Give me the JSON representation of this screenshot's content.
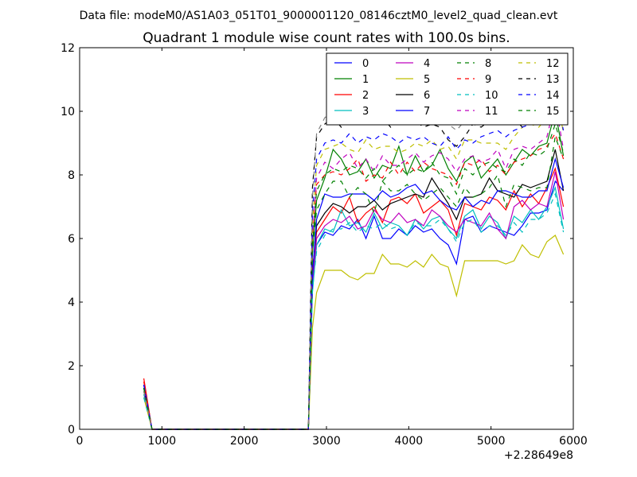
{
  "header": {
    "data_file": "Data file: modeM0/AS1A03_051T01_9000001120_08146cztM0_level2_quad_clean.evt"
  },
  "chart_data": {
    "type": "line",
    "title": "Quadrant 1 module wise count rates with 100.0s bins.",
    "xlabel": "",
    "ylabel": "",
    "x_offset_label": "+2.28649e8",
    "xlim": [
      0,
      6000
    ],
    "ylim": [
      0,
      12
    ],
    "xticks": [
      0,
      1000,
      2000,
      3000,
      4000,
      5000,
      6000
    ],
    "yticks": [
      0,
      2,
      4,
      6,
      8,
      10,
      12
    ],
    "grid": false,
    "legend_position": "top-right",
    "legend_columns": 4,
    "x": [
      780,
      880,
      980,
      1080,
      1180,
      1280,
      1380,
      1480,
      1580,
      1680,
      1780,
      1880,
      1980,
      2080,
      2180,
      2280,
      2380,
      2480,
      2580,
      2680,
      2780,
      2830,
      2880,
      2980,
      3080,
      3180,
      3280,
      3380,
      3480,
      3580,
      3680,
      3780,
      3880,
      3980,
      4080,
      4180,
      4280,
      4380,
      4480,
      4580,
      4680,
      4780,
      4880,
      4980,
      5080,
      5180,
      5280,
      5380,
      5480,
      5580,
      5680,
      5780,
      5880
    ],
    "series": [
      {
        "name": "0",
        "color": "#0000ff",
        "dash": "solid",
        "values": [
          1.3,
          0,
          0,
          0,
          0,
          0,
          0,
          0,
          0,
          0,
          0,
          0,
          0,
          0,
          0,
          0,
          0,
          0,
          0,
          0,
          0,
          4.5,
          5.8,
          6.2,
          6.1,
          6.4,
          6.3,
          6.6,
          6.0,
          6.7,
          6.0,
          6.0,
          6.3,
          6.1,
          6.4,
          6.2,
          6.3,
          6.0,
          5.8,
          5.2,
          6.6,
          6.7,
          6.2,
          6.4,
          6.3,
          6.2,
          6.1,
          6.4,
          6.8,
          6.8,
          6.9,
          7.8,
          7.5
        ]
      },
      {
        "name": "1",
        "color": "#008000",
        "dash": "solid",
        "values": [
          1.2,
          0,
          0,
          0,
          0,
          0,
          0,
          0,
          0,
          0,
          0,
          0,
          0,
          0,
          0,
          0,
          0,
          0,
          0,
          0,
          0,
          5.5,
          7.2,
          7.9,
          8.8,
          8.5,
          8.0,
          8.1,
          8.5,
          7.9,
          8.3,
          8.2,
          8.9,
          8.0,
          8.6,
          8.1,
          8.3,
          8.8,
          8.2,
          7.8,
          8.4,
          8.6,
          7.9,
          8.2,
          8.5,
          8.0,
          8.4,
          8.8,
          8.6,
          8.9,
          9.0,
          10.0,
          8.6
        ]
      },
      {
        "name": "2",
        "color": "#ff0000",
        "dash": "solid",
        "values": [
          1.6,
          0,
          0,
          0,
          0,
          0,
          0,
          0,
          0,
          0,
          0,
          0,
          0,
          0,
          0,
          0,
          0,
          0,
          0,
          0,
          0,
          5.0,
          6.2,
          6.6,
          7.0,
          6.8,
          7.3,
          6.5,
          6.8,
          7.0,
          6.5,
          7.2,
          7.3,
          7.1,
          7.4,
          6.8,
          7.0,
          7.2,
          6.9,
          6.1,
          7.1,
          7.0,
          6.9,
          7.3,
          7.2,
          6.9,
          7.5,
          7.0,
          7.4,
          7.1,
          7.6,
          8.2,
          7.0
        ]
      },
      {
        "name": "3",
        "color": "#00bfbf",
        "dash": "solid",
        "values": [
          1.1,
          0,
          0,
          0,
          0,
          0,
          0,
          0,
          0,
          0,
          0,
          0,
          0,
          0,
          0,
          0,
          0,
          0,
          0,
          0,
          0,
          4.3,
          5.8,
          6.3,
          6.2,
          6.9,
          6.4,
          6.5,
          6.2,
          6.8,
          6.3,
          6.5,
          6.4,
          6.1,
          6.6,
          6.3,
          6.6,
          6.7,
          6.3,
          6.0,
          6.7,
          6.9,
          6.3,
          6.7,
          6.5,
          6.0,
          6.7,
          6.5,
          6.9,
          6.6,
          7.0,
          7.6,
          6.3
        ]
      },
      {
        "name": "4",
        "color": "#bf00bf",
        "dash": "solid",
        "values": [
          1.2,
          0,
          0,
          0,
          0,
          0,
          0,
          0,
          0,
          0,
          0,
          0,
          0,
          0,
          0,
          0,
          0,
          0,
          0,
          0,
          0,
          4.6,
          6.0,
          6.4,
          6.6,
          6.5,
          6.7,
          6.3,
          6.4,
          6.9,
          6.6,
          6.5,
          6.8,
          6.5,
          6.6,
          6.4,
          6.9,
          6.7,
          6.4,
          6.2,
          6.6,
          6.5,
          6.4,
          6.8,
          6.3,
          6.0,
          7.0,
          7.2,
          6.9,
          7.1,
          7.0,
          8.1,
          6.6
        ]
      },
      {
        "name": "5",
        "color": "#bfbf00",
        "dash": "solid",
        "values": [
          1.0,
          0,
          0,
          0,
          0,
          0,
          0,
          0,
          0,
          0,
          0,
          0,
          0,
          0,
          0,
          0,
          0,
          0,
          0,
          0,
          0,
          3.2,
          4.3,
          5.0,
          5.0,
          5.0,
          4.8,
          4.7,
          4.9,
          4.9,
          5.5,
          5.2,
          5.2,
          5.1,
          5.3,
          5.1,
          5.5,
          5.2,
          5.1,
          4.2,
          5.3,
          5.3,
          5.3,
          5.3,
          5.3,
          5.2,
          5.3,
          5.8,
          5.5,
          5.4,
          5.9,
          6.1,
          5.5
        ]
      },
      {
        "name": "6",
        "color": "#000000",
        "dash": "solid",
        "values": [
          1.3,
          0,
          0,
          0,
          0,
          0,
          0,
          0,
          0,
          0,
          0,
          0,
          0,
          0,
          0,
          0,
          0,
          0,
          0,
          0,
          0,
          4.9,
          6.4,
          6.8,
          7.1,
          7.0,
          6.8,
          7.0,
          7.0,
          7.2,
          6.9,
          7.1,
          7.2,
          7.3,
          7.4,
          7.3,
          7.9,
          7.5,
          7.1,
          6.6,
          7.3,
          7.3,
          7.4,
          7.9,
          7.5,
          7.4,
          7.3,
          7.7,
          7.6,
          7.7,
          7.8,
          8.8,
          7.5
        ]
      },
      {
        "name": "7",
        "color": "#0000ff",
        "dash": "solid",
        "values": [
          1.4,
          0,
          0,
          0,
          0,
          0,
          0,
          0,
          0,
          0,
          0,
          0,
          0,
          0,
          0,
          0,
          0,
          0,
          0,
          0,
          0,
          4.8,
          6.6,
          7.4,
          7.3,
          7.3,
          7.4,
          7.4,
          7.4,
          7.2,
          7.5,
          7.3,
          7.4,
          7.6,
          7.7,
          7.4,
          7.5,
          7.2,
          7.0,
          6.9,
          7.3,
          7.0,
          7.2,
          7.1,
          7.5,
          7.5,
          7.4,
          7.3,
          7.3,
          7.5,
          7.5,
          8.5,
          7.6
        ]
      },
      {
        "name": "8",
        "color": "#008000",
        "dash": "dashed",
        "values": [
          1.3,
          0,
          0,
          0,
          0,
          0,
          0,
          0,
          0,
          0,
          0,
          0,
          0,
          0,
          0,
          0,
          0,
          0,
          0,
          0,
          0,
          5.5,
          6.9,
          7.4,
          7.8,
          7.8,
          7.3,
          7.6,
          7.4,
          6.8,
          7.8,
          7.5,
          7.5,
          7.7,
          7.4,
          7.2,
          7.4,
          7.6,
          7.3,
          7.0,
          7.6,
          7.3,
          7.4,
          7.6,
          8.0,
          7.0,
          7.7,
          7.6,
          7.5,
          7.6,
          7.6,
          9.2,
          8.5
        ]
      },
      {
        "name": "9",
        "color": "#ff0000",
        "dash": "dashed",
        "values": [
          1.5,
          0,
          0,
          0,
          0,
          0,
          0,
          0,
          0,
          0,
          0,
          0,
          0,
          0,
          0,
          0,
          0,
          0,
          0,
          0,
          0,
          6.0,
          7.7,
          8.0,
          8.1,
          8.0,
          8.2,
          8.5,
          7.8,
          8.0,
          7.9,
          8.4,
          8.0,
          8.4,
          8.1,
          8.4,
          8.2,
          8.1,
          8.0,
          7.7,
          8.4,
          8.3,
          8.5,
          8.1,
          8.3,
          8.0,
          8.4,
          8.5,
          8.6,
          8.8,
          8.9,
          9.3,
          8.5
        ]
      },
      {
        "name": "10",
        "color": "#00bfbf",
        "dash": "dashed",
        "values": [
          1.0,
          0,
          0,
          0,
          0,
          0,
          0,
          0,
          0,
          0,
          0,
          0,
          0,
          0,
          0,
          0,
          0,
          0,
          0,
          0,
          0,
          4.4,
          5.6,
          6.1,
          6.3,
          6.3,
          6.5,
          6.2,
          6.4,
          6.3,
          6.5,
          6.3,
          6.4,
          6.1,
          6.5,
          6.4,
          6.4,
          6.6,
          6.3,
          5.9,
          6.5,
          6.6,
          6.2,
          6.4,
          6.4,
          6.1,
          6.5,
          6.2,
          6.6,
          6.6,
          6.8,
          7.4,
          6.2
        ]
      },
      {
        "name": "11",
        "color": "#bf00bf",
        "dash": "dashed",
        "values": [
          1.4,
          0,
          0,
          0,
          0,
          0,
          0,
          0,
          0,
          0,
          0,
          0,
          0,
          0,
          0,
          0,
          0,
          0,
          0,
          0,
          0,
          6.0,
          7.9,
          8.4,
          8.2,
          8.5,
          8.7,
          8.2,
          8.5,
          8.1,
          8.6,
          8.3,
          8.3,
          8.5,
          8.7,
          8.4,
          8.6,
          8.7,
          8.5,
          8.1,
          8.5,
          8.6,
          8.4,
          8.5,
          8.8,
          8.2,
          8.8,
          8.9,
          8.8,
          9.0,
          9.2,
          10.3,
          8.8
        ]
      },
      {
        "name": "12",
        "color": "#bfbf00",
        "dash": "dashed",
        "values": [
          1.2,
          0,
          0,
          0,
          0,
          0,
          0,
          0,
          0,
          0,
          0,
          0,
          0,
          0,
          0,
          0,
          0,
          0,
          0,
          0,
          0,
          6.5,
          8.3,
          8.8,
          8.9,
          9.0,
          8.8,
          8.7,
          9.1,
          8.8,
          8.9,
          8.9,
          8.7,
          8.8,
          9.0,
          8.9,
          9.1,
          8.8,
          8.9,
          8.5,
          9.1,
          9.1,
          9.0,
          9.0,
          9.0,
          8.8,
          9.2,
          9.5,
          9.6,
          9.5,
          9.8,
          10.8,
          9.3
        ]
      },
      {
        "name": "13",
        "color": "#000000",
        "dash": "dashed",
        "values": [
          1.3,
          0,
          0,
          0,
          0,
          0,
          0,
          0,
          0,
          0,
          0,
          0,
          0,
          0,
          0,
          0,
          0,
          0,
          0,
          0,
          0,
          7.6,
          9.2,
          9.6,
          9.8,
          9.5,
          9.9,
          9.7,
          10.0,
          9.6,
          9.8,
          9.5,
          9.8,
          10.1,
          9.7,
          9.5,
          9.6,
          9.5,
          9.1,
          8.9,
          9.2,
          9.6,
          9.5,
          9.7,
          9.6,
          9.6,
          9.8,
          9.5,
          10.3,
          10.1,
          10.4,
          10.9,
          9.9
        ]
      },
      {
        "name": "14",
        "color": "#0000ff",
        "dash": "dashed",
        "values": [
          1.4,
          0,
          0,
          0,
          0,
          0,
          0,
          0,
          0,
          0,
          0,
          0,
          0,
          0,
          0,
          0,
          0,
          0,
          0,
          0,
          0,
          6.8,
          8.5,
          9.0,
          9.1,
          9.0,
          9.3,
          9.0,
          9.2,
          9.1,
          9.3,
          9.2,
          9.0,
          9.2,
          9.1,
          9.2,
          9.0,
          8.9,
          9.2,
          8.8,
          9.1,
          9.0,
          9.2,
          9.3,
          9.4,
          9.2,
          9.4,
          9.5,
          9.6,
          9.7,
          9.6,
          10.6,
          9.4
        ]
      },
      {
        "name": "15",
        "color": "#008000",
        "dash": "dashed",
        "values": [
          1.3,
          0,
          0,
          0,
          0,
          0,
          0,
          0,
          0,
          0,
          0,
          0,
          0,
          0,
          0,
          0,
          0,
          0,
          0,
          0,
          0,
          5.8,
          7.5,
          8.0,
          8.2,
          8.1,
          8.3,
          8.2,
          7.9,
          8.2,
          7.8,
          8.1,
          8.3,
          8.0,
          8.2,
          8.1,
          8.4,
          8.0,
          7.9,
          7.4,
          8.2,
          8.0,
          8.3,
          8.4,
          8.2,
          8.1,
          8.5,
          8.3,
          8.7,
          8.6,
          8.8,
          9.6,
          8.7
        ]
      },
      {
        "name": "",
        "color": "#808080",
        "dash": "dashed",
        "values": [
          1.2,
          0,
          0,
          0,
          0,
          0,
          0,
          0,
          0,
          0,
          0,
          0,
          0,
          0,
          0,
          0,
          0,
          0,
          0,
          0,
          0,
          7.3,
          9.3,
          9.8,
          10.0,
          9.9,
          10.1,
          9.9,
          10.0,
          9.8,
          10.2,
          10.1,
          10.3,
          10.0,
          10.1,
          9.9,
          10.0,
          9.8,
          9.6,
          9.4,
          9.7,
          9.9,
          10.1,
          10.2,
          10.0,
          10.0,
          10.4,
          10.2,
          10.5,
          10.6,
          10.7,
          11.0,
          10.1
        ]
      }
    ]
  }
}
